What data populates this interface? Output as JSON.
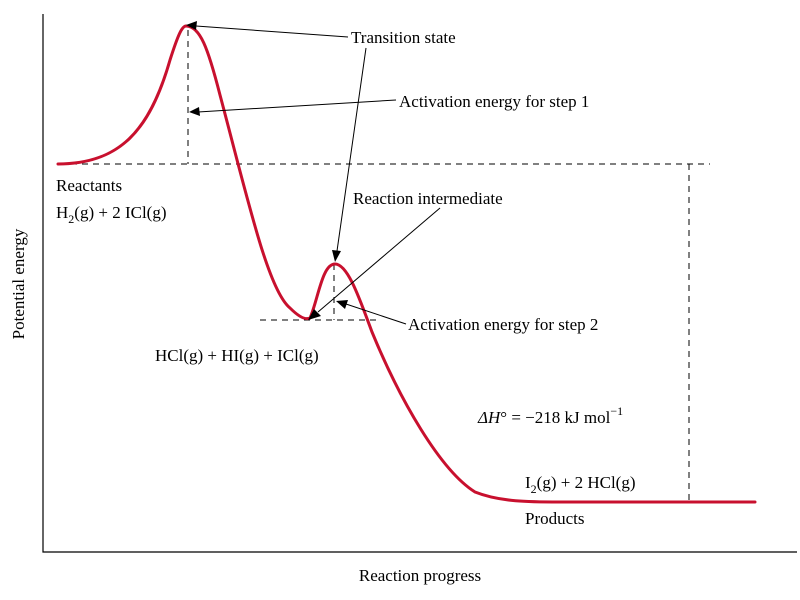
{
  "axes": {
    "xlabel": "Reaction progress",
    "ylabel": "Potential energy"
  },
  "labels": {
    "transition_state": "Transition state",
    "activation_step1": "Activation energy for step 1",
    "reaction_intermediate": "Reaction intermediate",
    "activation_step2": "Activation energy for step 2",
    "reactants_title": "Reactants",
    "reactants_formula": {
      "a": "H",
      "sub": "2",
      "b": "(g) + 2 ICl(g)"
    },
    "intermediate_species": "HCl(g) + HI(g) + ICl(g)",
    "products_formula": {
      "a": "I",
      "sub": "2",
      "b": "(g) + 2 HCl(g)"
    },
    "products_title": "Products",
    "enthalpy": {
      "symbol": "ΔH",
      "degree": "°",
      "equals": " = −218 kJ mol",
      "exponent": "−1"
    }
  },
  "colors": {
    "curve": "#c8102e",
    "ink": "#000000"
  }
}
